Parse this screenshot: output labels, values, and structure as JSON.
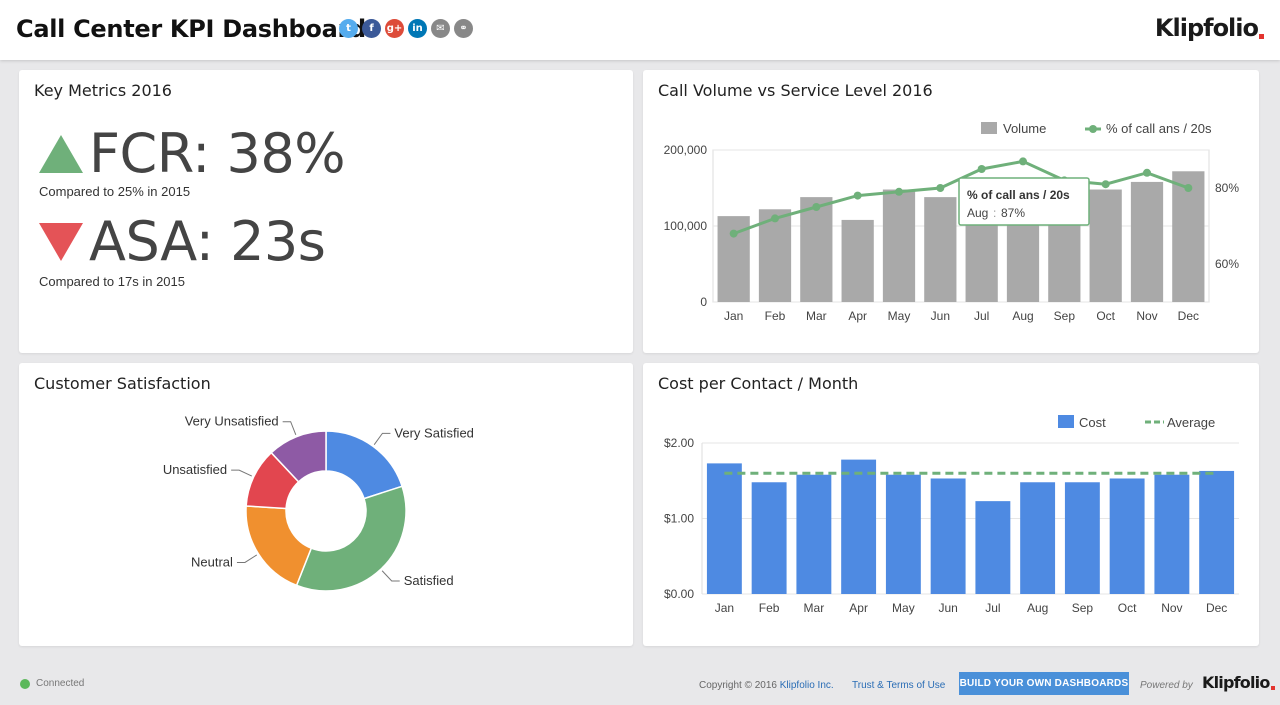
{
  "header": {
    "title": "Call Center KPI Dashboard",
    "brand": "Klipfolio",
    "share_icons": [
      {
        "name": "twitter-icon",
        "glyph": "t",
        "color": "#55acee"
      },
      {
        "name": "facebook-icon",
        "glyph": "f",
        "color": "#3b5998"
      },
      {
        "name": "google-plus-icon",
        "glyph": "g+",
        "color": "#dd4b39"
      },
      {
        "name": "linkedin-icon",
        "glyph": "in",
        "color": "#0077b5"
      },
      {
        "name": "email-icon",
        "glyph": "✉",
        "color": "#888888"
      },
      {
        "name": "link-icon",
        "glyph": "⚭",
        "color": "#888888"
      }
    ]
  },
  "key_metrics": {
    "title": "Key Metrics 2016",
    "fcr": {
      "label": "FCR: 38%",
      "note": "Compared to 25% in 2015",
      "trend": "up",
      "color": "#6fb07a"
    },
    "asa": {
      "label": "ASA: 23s",
      "note": "Compared to 17s in 2015",
      "trend": "down",
      "color": "#e45357"
    }
  },
  "call_volume": {
    "title": "Call Volume vs Service Level 2016",
    "tooltip": {
      "title": "% of call ans / 20s",
      "label": "Aug",
      "value": "87%"
    }
  },
  "satisfaction": {
    "title": "Customer Satisfaction"
  },
  "cost": {
    "title": "Cost per Contact / Month"
  },
  "chart_data": [
    {
      "type": "bar",
      "title": "Call Volume vs Service Level 2016",
      "categories": [
        "Jan",
        "Feb",
        "Mar",
        "Apr",
        "May",
        "Jun",
        "Jul",
        "Aug",
        "Sep",
        "Oct",
        "Nov",
        "Dec"
      ],
      "series": [
        {
          "name": "Volume",
          "type": "bar",
          "axis": "left",
          "color": "#a9a9a9",
          "values": [
            113000,
            122000,
            138000,
            108000,
            148000,
            138000,
            162000,
            113000,
            122000,
            148000,
            158000,
            172000
          ]
        },
        {
          "name": "% of call ans / 20s",
          "type": "line",
          "axis": "right",
          "color": "#6fb07a",
          "values": [
            68,
            72,
            75,
            78,
            79,
            80,
            85,
            87,
            82,
            81,
            84,
            80
          ]
        }
      ],
      "yticks_left": [
        "200,000",
        "100,000",
        "0"
      ],
      "yticks_right": [
        "80%",
        "60%"
      ],
      "ylim_left": [
        0,
        200000
      ],
      "ylim_right": [
        50,
        90
      ],
      "legend": "top-right"
    },
    {
      "type": "pie",
      "title": "Customer Satisfaction",
      "donut": true,
      "slices": [
        {
          "label": "Very Satisfied",
          "value": 20,
          "color": "#4e8ae2"
        },
        {
          "label": "Satisfied",
          "value": 36,
          "color": "#6fb07a"
        },
        {
          "label": "Neutral",
          "value": 20,
          "color": "#f0902f"
        },
        {
          "label": "Unsatisfied",
          "value": 12,
          "color": "#e2464f"
        },
        {
          "label": "Very Unsatisfied",
          "value": 12,
          "color": "#8e5aa5"
        }
      ]
    },
    {
      "type": "bar",
      "title": "Cost per Contact / Month",
      "categories": [
        "Jan",
        "Feb",
        "Mar",
        "Apr",
        "May",
        "Jun",
        "Jul",
        "Aug",
        "Sep",
        "Oct",
        "Nov",
        "Dec"
      ],
      "series": [
        {
          "name": "Cost",
          "type": "bar",
          "color": "#4e8ae2",
          "values": [
            1.73,
            1.48,
            1.58,
            1.78,
            1.58,
            1.53,
            1.23,
            1.48,
            1.48,
            1.53,
            1.58,
            1.63
          ]
        },
        {
          "name": "Average",
          "type": "line",
          "style": "dashed",
          "color": "#6fb07a",
          "value": 1.6
        }
      ],
      "yticks": [
        "$2.00",
        "$1.00",
        "$0.00"
      ],
      "ylim": [
        0,
        2
      ],
      "legend": "top-right"
    }
  ],
  "footer": {
    "status": "Connected",
    "copyright": "Copyright © 2016",
    "copyright_link": "Klipfolio Inc.",
    "terms": "Trust & Terms of Use",
    "build_button": "BUILD YOUR OWN DASHBOARDS",
    "powered_by": "Powered by",
    "brand": "Klipfolio"
  }
}
